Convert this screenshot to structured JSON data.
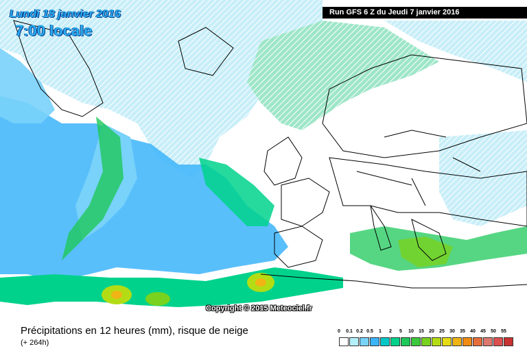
{
  "header": {
    "date": "Lundi 18 janvier 2016",
    "time": "7:00 locale",
    "run": "Run GFS 6 Z du Jeudi 7 janvier 2016"
  },
  "map": {
    "copyright": "Copyright © 2015 Meteociel.fr"
  },
  "legend": {
    "title": "Précipitations en 12 heures (mm), risque de neige",
    "subtitle": "(+ 264h)",
    "ticks": [
      "0",
      "0.1",
      "0.2",
      "0.5",
      "1",
      "2",
      "5",
      "10",
      "15",
      "20",
      "25",
      "30",
      "35",
      "40",
      "45",
      "50",
      "55"
    ],
    "colors": [
      "#ffffff",
      "#b4f0fa",
      "#78d2fa",
      "#3cb4fa",
      "#00c8c8",
      "#00d28c",
      "#1ec85a",
      "#3cc83c",
      "#78d21e",
      "#b4dc14",
      "#e6dc14",
      "#f0b414",
      "#f08c14",
      "#e66e3c",
      "#dc786e",
      "#dc5050",
      "#c83232"
    ]
  }
}
